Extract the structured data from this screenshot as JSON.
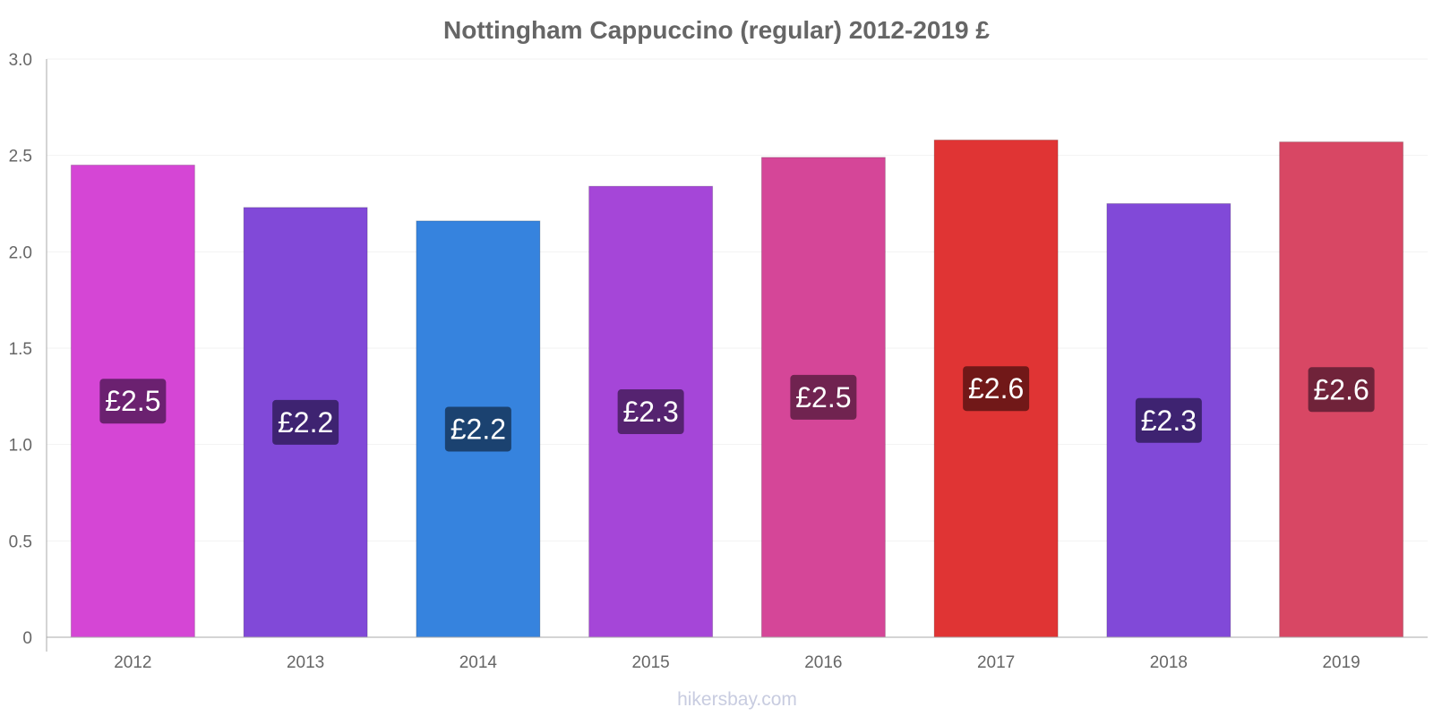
{
  "chart_data": {
    "type": "bar",
    "title": "Nottingham Cappuccino (regular) 2012-2019 £",
    "xlabel": "",
    "ylabel": "",
    "categories": [
      "2012",
      "2013",
      "2014",
      "2015",
      "2016",
      "2017",
      "2018",
      "2019"
    ],
    "values": [
      2.45,
      2.23,
      2.16,
      2.34,
      2.49,
      2.58,
      2.25,
      2.57
    ],
    "data_labels": [
      "£2.5",
      "£2.2",
      "£2.2",
      "£2.3",
      "£2.5",
      "£2.6",
      "£2.3",
      "£2.6"
    ],
    "bar_colors": [
      "#d546d5",
      "#8149d8",
      "#3683de",
      "#a546d8",
      "#d54698",
      "#e03434",
      "#8149d8",
      "#d84764"
    ],
    "label_bg_colors": [
      "#6b2170",
      "#3e2371",
      "#1b4270",
      "#552370",
      "#702350",
      "#711818",
      "#3e2371",
      "#70233a"
    ],
    "yticks": [
      "0",
      "0.5",
      "1.0",
      "1.5",
      "2.0",
      "2.5",
      "3.0"
    ],
    "ytick_values": [
      0,
      0.5,
      1.0,
      1.5,
      2.0,
      2.5,
      3.0
    ],
    "ylim": [
      0,
      3.0
    ],
    "grid": true,
    "legend": "none"
  },
  "watermark": "hikersbay.com"
}
